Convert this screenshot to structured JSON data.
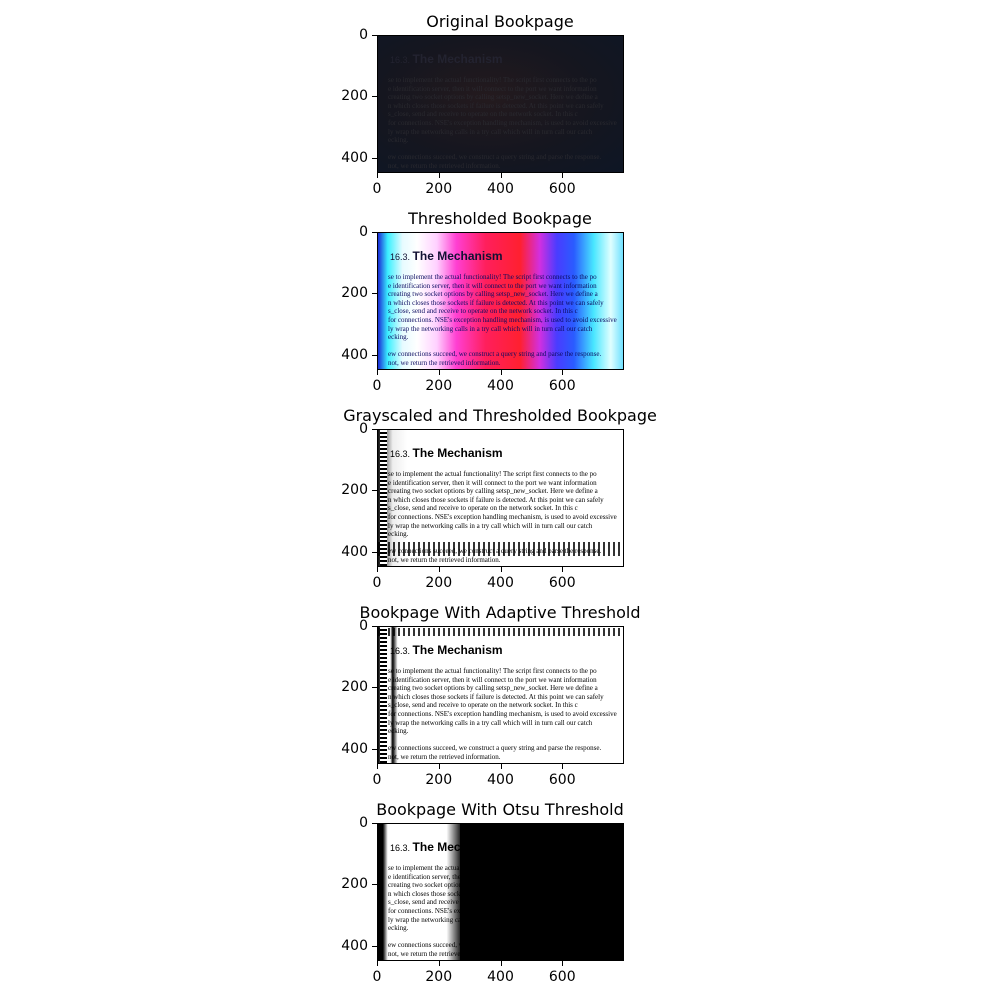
{
  "figure": {
    "panels": [
      {
        "id": "original",
        "title": "Original Bookpage"
      },
      {
        "id": "threshold",
        "title": "Thresholded Bookpage"
      },
      {
        "id": "gray_threshold",
        "title": "Grayscaled and Thresholded Bookpage"
      },
      {
        "id": "adaptive",
        "title": "Bookpage With Adaptive Threshold"
      },
      {
        "id": "otsu",
        "title": "Bookpage With Otsu Threshold"
      }
    ],
    "page_heading": "16.3. The Mechanism",
    "page_heading_number": "16.3.",
    "page_heading_title": "The Mechanism",
    "page_text_lines": [
      "se to implement the actual functionality! The script first connects to the po",
      "e identification server, then it will connect to the port we want information",
      "creating two socket options by calling setsp_new_socket. Here we define a",
      "n which closes those sockets if failure is detected. At this point we can safely",
      "s_close, send and receive to operate on the network socket. In this c",
      "for connections. NSE's exception handling mechanism, is used to avoid excessive",
      "ly wrap the networking calls in a try call which will in turn call our catch",
      "ecking.",
      "",
      "ew connections succeed, we construct a query string and parse the response.",
      "not, we return the retrieved information."
    ]
  },
  "chart_data": {
    "type": "image_grid",
    "layout": "5 rows x 1 column",
    "panels": [
      {
        "title": "Original Bookpage",
        "xlim": [
          0,
          800
        ],
        "ylim": [
          450,
          0
        ],
        "xticks": [
          0,
          200,
          400,
          600
        ],
        "yticks": [
          0,
          200,
          400
        ],
        "colormap": "rgb",
        "description_tone": "dark"
      },
      {
        "title": "Thresholded Bookpage",
        "xlim": [
          0,
          800
        ],
        "ylim": [
          450,
          0
        ],
        "xticks": [
          0,
          200,
          400,
          600
        ],
        "yticks": [
          0,
          200,
          400
        ],
        "colormap": "per-channel threshold"
      },
      {
        "title": "Grayscaled and Thresholded Bookpage",
        "xlim": [
          0,
          800
        ],
        "ylim": [
          450,
          0
        ],
        "xticks": [
          0,
          200,
          400,
          600
        ],
        "yticks": [
          0,
          200,
          400
        ],
        "colormap": "binary"
      },
      {
        "title": "Bookpage With Adaptive Threshold",
        "xlim": [
          0,
          800
        ],
        "ylim": [
          450,
          0
        ],
        "xticks": [
          0,
          200,
          400,
          600
        ],
        "yticks": [
          0,
          200,
          400
        ],
        "colormap": "binary"
      },
      {
        "title": "Bookpage With Otsu Threshold",
        "xlim": [
          0,
          800
        ],
        "ylim": [
          450,
          0
        ],
        "xticks": [
          0,
          200,
          400,
          600
        ],
        "yticks": [
          0,
          200,
          400
        ],
        "colormap": "binary"
      }
    ]
  }
}
